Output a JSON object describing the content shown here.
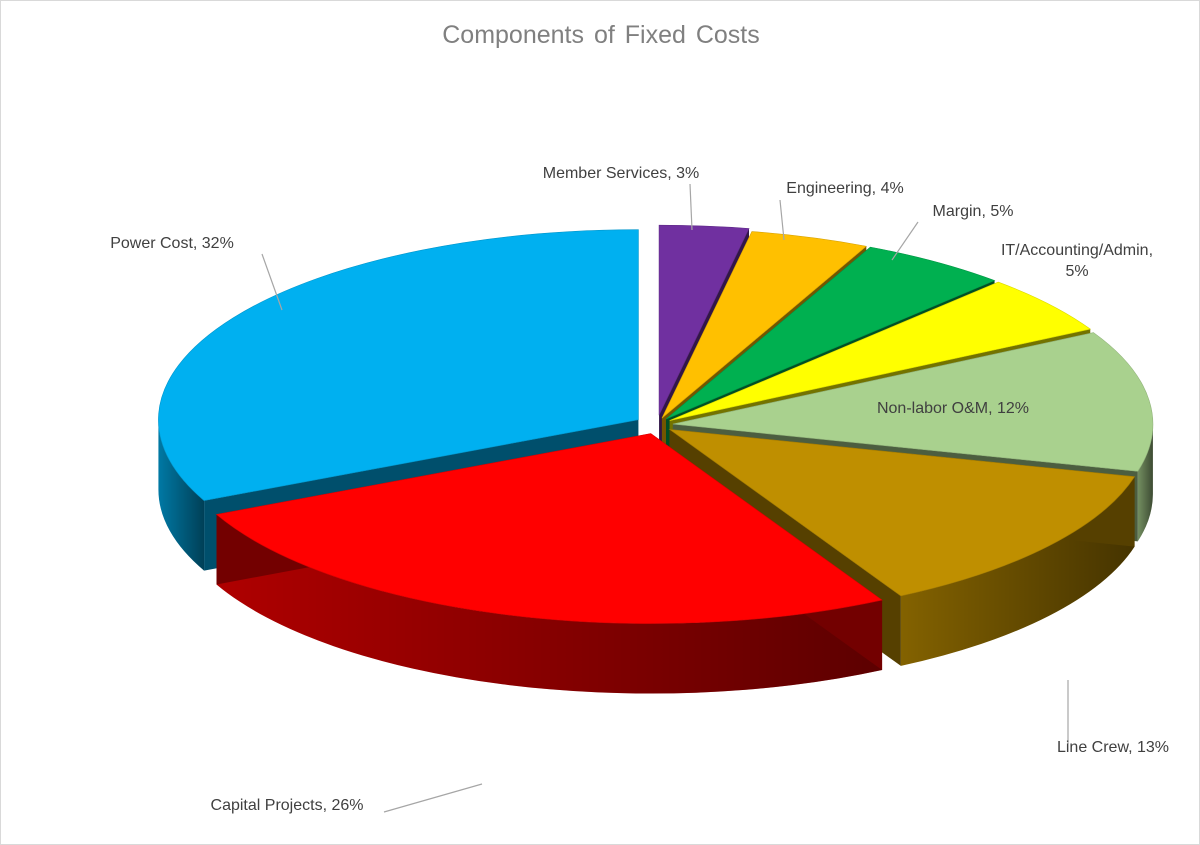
{
  "chart_data": {
    "type": "pie",
    "title": "Components of Fixed Costs",
    "style": "3d-exploded",
    "slices": [
      {
        "name": "Member Services",
        "value": 3,
        "label": "Member Services, 3%",
        "color": "#7030a0"
      },
      {
        "name": "Engineering",
        "value": 4,
        "label": "Engineering, 4%",
        "color": "#ffc000"
      },
      {
        "name": "Margin",
        "value": 5,
        "label": "Margin, 5%",
        "color": "#00b050"
      },
      {
        "name": "IT/Accounting/Admin",
        "value": 5,
        "label_lines": [
          "IT/Accounting/Admin,",
          "5%"
        ],
        "color": "#ffff00"
      },
      {
        "name": "Non-labor O&M",
        "value": 12,
        "label": "Non-labor O&M, 12%",
        "color": "#a9d18e"
      },
      {
        "name": "Line Crew",
        "value": 13,
        "label": "Line Crew, 13%",
        "color": "#bf8f00"
      },
      {
        "name": "Capital Projects",
        "value": 26,
        "label": "Capital Projects, 26%",
        "color": "#ff0000"
      },
      {
        "name": "Power Cost",
        "value": 32,
        "label": "Power Cost, 32%",
        "color": "#00b0f0"
      }
    ]
  }
}
